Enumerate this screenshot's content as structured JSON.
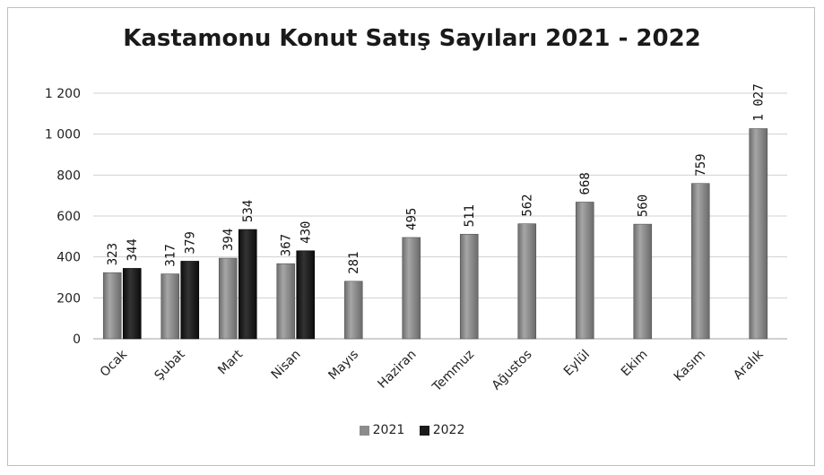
{
  "chart_data": {
    "type": "bar",
    "title": "Kastamonu Konut Satış Sayıları 2021 - 2022",
    "categories": [
      "Ocak",
      "Şubat",
      "Mart",
      "Nisan",
      "Mayıs",
      "Haziran",
      "Temmuz",
      "Ağustos",
      "Eylül",
      "Ekim",
      "Kasım",
      "Aralık"
    ],
    "series": [
      {
        "name": "2021",
        "color": "#8c8c8c",
        "values": [
          323,
          317,
          394,
          367,
          281,
          495,
          511,
          562,
          668,
          560,
          759,
          1027
        ],
        "labels": [
          "323",
          "317",
          "394",
          "367",
          "281",
          "495",
          "511",
          "562",
          "668",
          "560",
          "759",
          "1 027"
        ]
      },
      {
        "name": "2022",
        "color": "#1a1a1a",
        "values": [
          344,
          379,
          534,
          430,
          null,
          null,
          null,
          null,
          null,
          null,
          null,
          null
        ],
        "labels": [
          "344",
          "379",
          "534",
          "430",
          "",
          "",
          "",
          "",
          "",
          "",
          "",
          ""
        ]
      }
    ],
    "yticks": [
      0,
      200,
      400,
      600,
      800,
      1000,
      1200
    ],
    "ytick_labels": [
      "0",
      "200",
      "400",
      "600",
      "800",
      "1 000",
      "1 200"
    ],
    "ylim": [
      0,
      1200
    ],
    "grid": true,
    "legend_position": "bottom"
  }
}
